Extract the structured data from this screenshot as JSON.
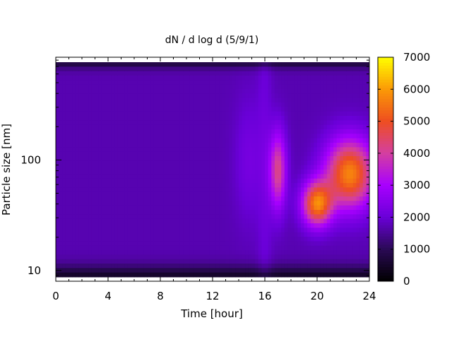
{
  "chart_data": {
    "type": "heatmap",
    "title": "dN / d log d (5/9/1)",
    "xlabel": "Time [hour]",
    "ylabel": "Particle size [nm]",
    "x_range": [
      0,
      24
    ],
    "x_ticks": [
      0,
      4,
      8,
      12,
      16,
      20,
      24
    ],
    "x_minor_step": 1,
    "y_scale": "log",
    "y_range": [
      8,
      850
    ],
    "y_ticks": [
      10,
      100
    ],
    "colorbar": {
      "range": [
        0,
        7000
      ],
      "ticks": [
        0,
        1000,
        2000,
        3000,
        4000,
        5000,
        6000,
        7000
      ],
      "palette": [
        "#000000",
        "#2a0a55",
        "#6a00d8",
        "#a800ff",
        "#d43fa0",
        "#ee4e20",
        "#fb9a06",
        "#ffff00"
      ]
    },
    "features": [
      {
        "time": 17.0,
        "size_nm": 80,
        "peak": 4200
      },
      {
        "time": 20.0,
        "size_nm": 40,
        "peak": 5300
      },
      {
        "time": 22.5,
        "size_nm": 75,
        "peak": 5600
      }
    ]
  }
}
